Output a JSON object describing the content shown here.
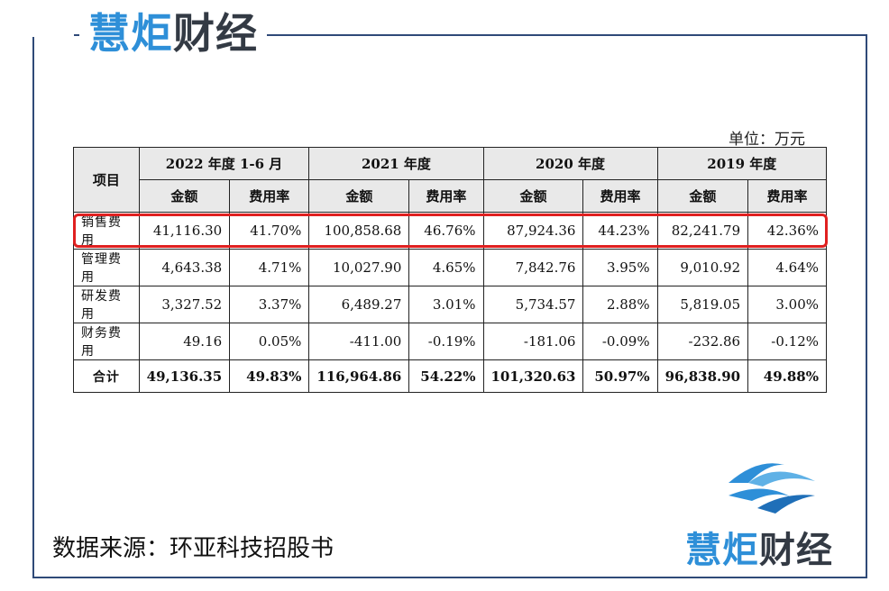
{
  "brand": {
    "part1": "慧炬",
    "part2": "财经"
  },
  "unit": "单位：万元",
  "table": {
    "item_header": "项目",
    "periods": [
      "2022 年度 1-6 月",
      "2021 年度",
      "2020 年度",
      "2019 年度"
    ],
    "sub_headers": {
      "amount": "金额",
      "rate": "费用率"
    },
    "rows": [
      {
        "label": "销售费用",
        "cells": [
          "41,116.30",
          "41.70%",
          "100,858.68",
          "46.76%",
          "87,924.36",
          "44.23%",
          "82,241.79",
          "42.36%"
        ]
      },
      {
        "label": "管理费用",
        "cells": [
          "4,643.38",
          "4.71%",
          "10,027.90",
          "4.65%",
          "7,842.76",
          "3.95%",
          "9,010.92",
          "4.64%"
        ]
      },
      {
        "label": "研发费用",
        "cells": [
          "3,327.52",
          "3.37%",
          "6,489.27",
          "3.01%",
          "5,734.57",
          "2.88%",
          "5,819.05",
          "3.00%"
        ]
      },
      {
        "label": "财务费用",
        "cells": [
          "49.16",
          "0.05%",
          "-411.00",
          "-0.19%",
          "-181.06",
          "-0.09%",
          "-232.86",
          "-0.12%"
        ]
      }
    ],
    "total": {
      "label": "合计",
      "cells": [
        "49,136.35",
        "49.83%",
        "116,964.86",
        "54.22%",
        "101,320.63",
        "50.97%",
        "96,838.90",
        "49.88%"
      ]
    }
  },
  "source": "数据来源：环亚科技招股书",
  "colors": {
    "brand_blue": "#2e8fd8",
    "frame": "#2f4a78",
    "highlight": "#e02020"
  }
}
